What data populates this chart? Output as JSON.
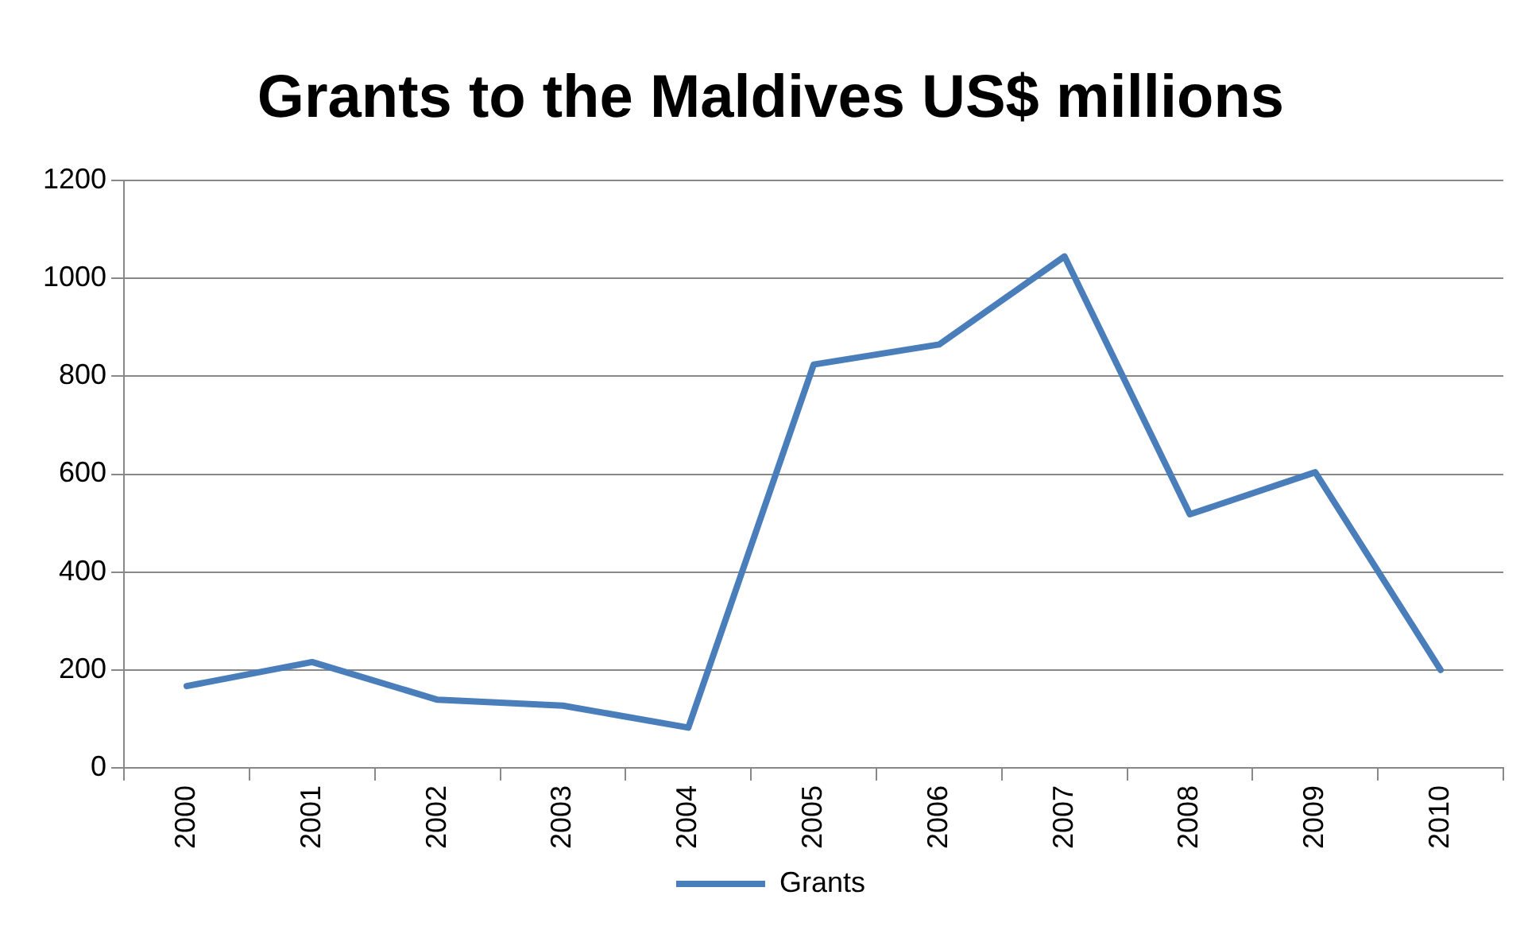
{
  "chart_data": {
    "type": "line",
    "title": "Grants to the Maldives US$ millions",
    "categories": [
      "2000",
      "2001",
      "2002",
      "2003",
      "2004",
      "2005",
      "2006",
      "2007",
      "2008",
      "2009",
      "2010"
    ],
    "series": [
      {
        "name": "Grants",
        "color": "#4a7ebb",
        "values": [
          167,
          216,
          139,
          127,
          82,
          824,
          865,
          1045,
          518,
          604,
          200
        ]
      }
    ],
    "ylim": [
      0,
      1200
    ],
    "yticks": [
      0,
      200,
      400,
      600,
      800,
      1000,
      1200
    ],
    "grid": "y",
    "legend": "bottom",
    "marker": "none",
    "line_style": "solid"
  }
}
